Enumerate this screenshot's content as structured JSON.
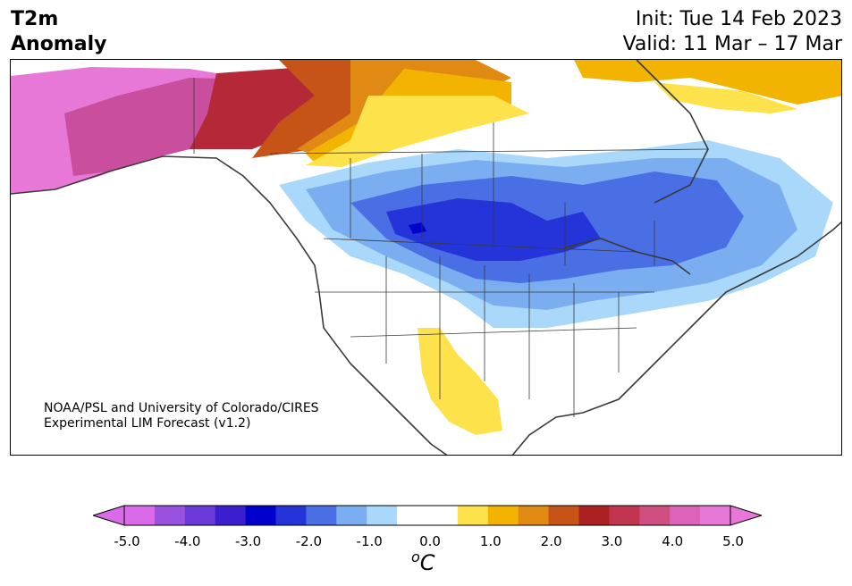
{
  "title": {
    "line1": "T2m",
    "line2": "Anomaly"
  },
  "dates": {
    "init": "Init: Tue 14 Feb 2023",
    "valid": "Valid: 11 Mar – 17 Mar"
  },
  "credit": {
    "line1": "NOAA/PSL and University of Colorado/CIRES",
    "line2": "Experimental LIM Forecast (v1.2)"
  },
  "colorbar": {
    "ticks": [
      "-5.0",
      "-4.0",
      "-3.0",
      "-2.0",
      "-1.0",
      "0.0",
      "1.0",
      "2.0",
      "3.0",
      "4.0",
      "5.0"
    ],
    "unit_main": "C",
    "unit_sup": "o",
    "colors": [
      "#d96be8",
      "#9a52de",
      "#6a3ad8",
      "#3b1fcf",
      "#0000cc",
      "#2434d8",
      "#4a6fe4",
      "#7aaef0",
      "#aad8fb",
      "#ffffff",
      "#ffffff",
      "#fde24b",
      "#f2b400",
      "#e08a14",
      "#c75417",
      "#ab2020",
      "#c23550",
      "#cf4f80",
      "#dd63b8",
      "#e878d8"
    ],
    "min_color": "#d96be8",
    "max_color": "#e878d8"
  },
  "map_colors": {
    "pink": "#e878d8",
    "magenta": "#c94f9e",
    "crimson": "#b52838",
    "red": "#ab2020",
    "rust": "#c75417",
    "orange": "#e08a14",
    "gold": "#f2b400",
    "yellow": "#fde24b",
    "lightblue": "#aad8fb",
    "blue1": "#7aaef0",
    "blue2": "#4a6fe4",
    "blue3": "#2434d8",
    "blue4": "#0000cc",
    "outline": "#3a3a3a"
  }
}
